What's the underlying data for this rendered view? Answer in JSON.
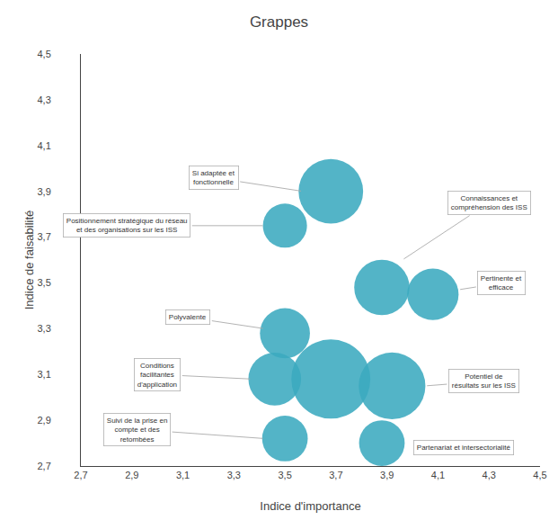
{
  "chart_data": {
    "type": "bubble",
    "title": "Grappes",
    "xlabel": "Indice d'importance",
    "ylabel": "Indice de faisabilité",
    "x": [
      3.68,
      3.88,
      4.08,
      3.5,
      3.68,
      3.46,
      3.5,
      3.92,
      3.88,
      3.5
    ],
    "y": [
      3.9,
      3.48,
      3.45,
      3.28,
      3.08,
      3.08,
      2.82,
      3.05,
      2.8,
      3.75
    ],
    "sizes": [
      3000,
      2200,
      1900,
      1800,
      4500,
      2000,
      1500,
      3200,
      1500,
      1400
    ],
    "color": "#3BAABF",
    "xlim": [
      2.7,
      4.5
    ],
    "ylim": [
      2.7,
      4.5
    ],
    "xticks": [
      {
        "value": 2.7,
        "label": "2,7"
      },
      {
        "value": 2.9,
        "label": "2,9"
      },
      {
        "value": 3.1,
        "label": "3,1"
      },
      {
        "value": 3.3,
        "label": "3,3"
      },
      {
        "value": 3.5,
        "label": "3,5"
      },
      {
        "value": 3.7,
        "label": "3,7"
      },
      {
        "value": 3.9,
        "label": "3,9"
      },
      {
        "value": 4.1,
        "label": "4,1"
      },
      {
        "value": 4.3,
        "label": "4,3"
      },
      {
        "value": 4.5,
        "label": "4,5"
      }
    ],
    "yticks": [
      {
        "value": 2.7,
        "label": "2,7"
      },
      {
        "value": 2.9,
        "label": "2,9"
      },
      {
        "value": 3.1,
        "label": "3,1"
      },
      {
        "value": 3.3,
        "label": "3,3"
      },
      {
        "value": 3.5,
        "label": "3,5"
      },
      {
        "value": 3.7,
        "label": "3,7"
      },
      {
        "value": 3.9,
        "label": "3,9"
      },
      {
        "value": 4.1,
        "label": "4,1"
      },
      {
        "value": 4.3,
        "label": "4,3"
      },
      {
        "value": 4.5,
        "label": "4,5"
      }
    ],
    "grid": false,
    "annotations": [
      {
        "text": "Si adaptée et\nfonctionnelle",
        "x": 3.22,
        "y": 3.96,
        "arrow_x": 3.57,
        "arrow_y": 3.9
      },
      {
        "text": "Connaissances et\ncompréhension des ISS",
        "x": 4.3,
        "y": 3.85,
        "arrow_x": 3.96,
        "arrow_y": 3.6
      },
      {
        "text": "Pertinente et\nefficace",
        "x": 4.35,
        "y": 3.5,
        "arrow_x": 4.18,
        "arrow_y": 3.47
      },
      {
        "text": "Polyvalente",
        "x": 3.12,
        "y": 3.35,
        "arrow_x": 3.42,
        "arrow_y": 3.3
      },
      {
        "text": "Conditions\nfacilitantes\nd'application",
        "x": 3.0,
        "y": 3.1,
        "arrow_x": 3.37,
        "arrow_y": 3.08
      },
      {
        "text": "Suivi de la prise en\ncompte et des\nretombées",
        "x": 2.92,
        "y": 2.86,
        "arrow_x": 3.42,
        "arrow_y": 2.82
      },
      {
        "text": "Potentiel de\nrésultats sur les ISS",
        "x": 4.28,
        "y": 3.07,
        "arrow_x": 4.05,
        "arrow_y": 3.05
      },
      {
        "text": "Partenariat et intersectorialité",
        "x": 4.2,
        "y": 2.78,
        "arrow_x": 4.0,
        "arrow_y": 2.8
      },
      {
        "text": "Positionnement stratégique du réseau\net des organisations sur les ISS",
        "x": 2.88,
        "y": 3.75,
        "arrow_x": 3.42,
        "arrow_y": 3.75
      }
    ]
  }
}
